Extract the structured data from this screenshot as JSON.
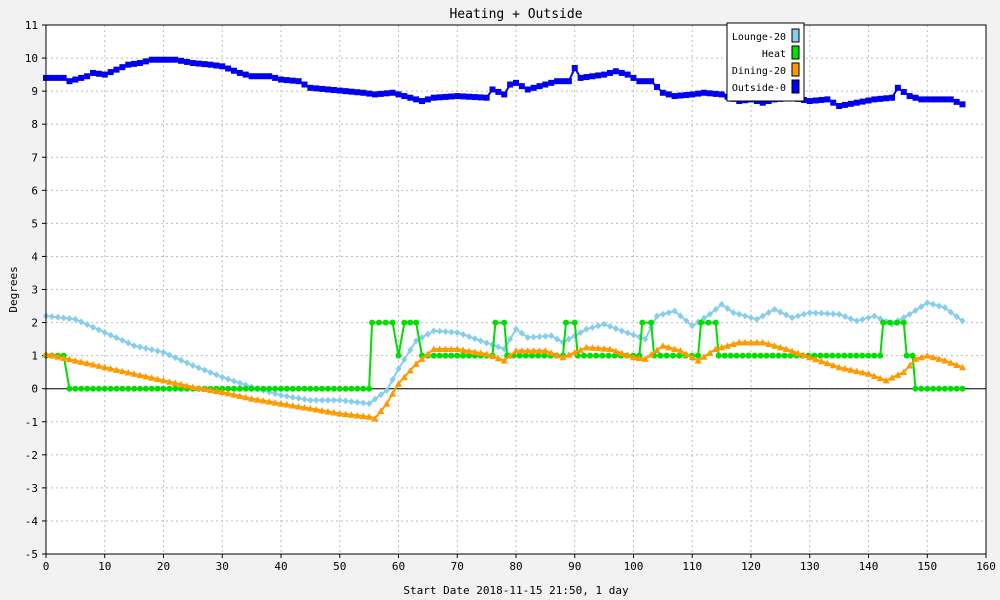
{
  "chart_data": {
    "type": "line",
    "title": "Heating + Outside",
    "xlabel": "Start Date 2018-11-15 21:50, 1 day",
    "ylabel": "Degrees",
    "xlim": [
      0,
      160
    ],
    "ylim": [
      -5,
      11
    ],
    "x_ticks": [
      0,
      10,
      20,
      30,
      40,
      50,
      60,
      70,
      80,
      90,
      100,
      110,
      120,
      130,
      140,
      150,
      160
    ],
    "y_ticks": [
      -5,
      -4,
      -3,
      -2,
      -1,
      0,
      1,
      2,
      3,
      4,
      5,
      6,
      7,
      8,
      9,
      10,
      11
    ],
    "grid": true,
    "legend_position": "top-right",
    "series": [
      {
        "name": "Lounge-20",
        "color": "#87ceeb",
        "marker": "diamond",
        "points": [
          [
            0,
            2.2
          ],
          [
            5,
            2.1
          ],
          [
            10,
            1.7
          ],
          [
            15,
            1.3
          ],
          [
            20,
            1.1
          ],
          [
            25,
            0.7
          ],
          [
            30,
            0.35
          ],
          [
            35,
            0.05
          ],
          [
            40,
            -0.2
          ],
          [
            45,
            -0.35
          ],
          [
            50,
            -0.35
          ],
          [
            55,
            -0.45
          ],
          [
            58,
            -0.05
          ],
          [
            60,
            0.6
          ],
          [
            63,
            1.45
          ],
          [
            66,
            1.75
          ],
          [
            70,
            1.7
          ],
          [
            74,
            1.45
          ],
          [
            78,
            1.2
          ],
          [
            80,
            1.8
          ],
          [
            82,
            1.55
          ],
          [
            86,
            1.6
          ],
          [
            88,
            1.4
          ],
          [
            92,
            1.8
          ],
          [
            95,
            1.95
          ],
          [
            98,
            1.75
          ],
          [
            102,
            1.5
          ],
          [
            104,
            2.2
          ],
          [
            107,
            2.35
          ],
          [
            110,
            1.9
          ],
          [
            113,
            2.25
          ],
          [
            115,
            2.55
          ],
          [
            117,
            2.3
          ],
          [
            121,
            2.1
          ],
          [
            124,
            2.4
          ],
          [
            127,
            2.15
          ],
          [
            130,
            2.3
          ],
          [
            135,
            2.25
          ],
          [
            138,
            2.05
          ],
          [
            141,
            2.2
          ],
          [
            144,
            1.95
          ],
          [
            147,
            2.25
          ],
          [
            150,
            2.6
          ],
          [
            153,
            2.45
          ],
          [
            156,
            2.05
          ]
        ]
      },
      {
        "name": "Heat",
        "color": "#00dd00",
        "marker": "circle",
        "points": [
          [
            0,
            1
          ],
          [
            3,
            1
          ],
          [
            4,
            0
          ],
          [
            55,
            0
          ],
          [
            55.5,
            2
          ],
          [
            59,
            2
          ],
          [
            60,
            1
          ],
          [
            61,
            2
          ],
          [
            63,
            2
          ],
          [
            64,
            1
          ],
          [
            76,
            1
          ],
          [
            76.5,
            2
          ],
          [
            78,
            2
          ],
          [
            78.5,
            1
          ],
          [
            88,
            1
          ],
          [
            88.5,
            2
          ],
          [
            90,
            2
          ],
          [
            90.5,
            1
          ],
          [
            101,
            1
          ],
          [
            101.5,
            2
          ],
          [
            103,
            2
          ],
          [
            103.5,
            1
          ],
          [
            111,
            1
          ],
          [
            111.5,
            2
          ],
          [
            114,
            2
          ],
          [
            114.5,
            1
          ],
          [
            142,
            1
          ],
          [
            142.5,
            2
          ],
          [
            146,
            2
          ],
          [
            146.5,
            1
          ],
          [
            147.5,
            1
          ],
          [
            148,
            0
          ],
          [
            156,
            0
          ]
        ]
      },
      {
        "name": "Dining-20",
        "color": "#ff9900",
        "marker": "triangle",
        "points": [
          [
            0,
            1.05
          ],
          [
            5,
            0.85
          ],
          [
            10,
            0.65
          ],
          [
            15,
            0.45
          ],
          [
            20,
            0.25
          ],
          [
            25,
            0.05
          ],
          [
            30,
            -0.1
          ],
          [
            35,
            -0.3
          ],
          [
            40,
            -0.45
          ],
          [
            45,
            -0.6
          ],
          [
            50,
            -0.75
          ],
          [
            55,
            -0.85
          ],
          [
            56,
            -0.9
          ],
          [
            58,
            -0.45
          ],
          [
            60,
            0.15
          ],
          [
            63,
            0.75
          ],
          [
            66,
            1.2
          ],
          [
            70,
            1.2
          ],
          [
            75,
            1.05
          ],
          [
            78,
            0.85
          ],
          [
            80,
            1.15
          ],
          [
            85,
            1.15
          ],
          [
            88,
            0.95
          ],
          [
            92,
            1.25
          ],
          [
            96,
            1.2
          ],
          [
            100,
            0.95
          ],
          [
            102,
            0.9
          ],
          [
            105,
            1.3
          ],
          [
            108,
            1.15
          ],
          [
            111,
            0.85
          ],
          [
            114,
            1.2
          ],
          [
            118,
            1.4
          ],
          [
            122,
            1.4
          ],
          [
            126,
            1.2
          ],
          [
            130,
            0.95
          ],
          [
            135,
            0.65
          ],
          [
            140,
            0.45
          ],
          [
            143,
            0.25
          ],
          [
            146,
            0.5
          ],
          [
            148,
            0.9
          ],
          [
            150,
            1.0
          ],
          [
            153,
            0.85
          ],
          [
            156,
            0.65
          ]
        ]
      },
      {
        "name": "Outside-0",
        "color": "#0000ee",
        "marker": "square",
        "points": [
          [
            0,
            9.4
          ],
          [
            3,
            9.4
          ],
          [
            4,
            9.3
          ],
          [
            7,
            9.45
          ],
          [
            8,
            9.55
          ],
          [
            10,
            9.5
          ],
          [
            12,
            9.65
          ],
          [
            14,
            9.8
          ],
          [
            16,
            9.85
          ],
          [
            18,
            9.95
          ],
          [
            22,
            9.95
          ],
          [
            25,
            9.85
          ],
          [
            28,
            9.8
          ],
          [
            30,
            9.75
          ],
          [
            33,
            9.55
          ],
          [
            35,
            9.45
          ],
          [
            38,
            9.45
          ],
          [
            40,
            9.35
          ],
          [
            43,
            9.3
          ],
          [
            45,
            9.1
          ],
          [
            48,
            9.05
          ],
          [
            51,
            9.0
          ],
          [
            54,
            8.95
          ],
          [
            56,
            8.9
          ],
          [
            59,
            8.95
          ],
          [
            62,
            8.8
          ],
          [
            64,
            8.7
          ],
          [
            66,
            8.8
          ],
          [
            70,
            8.85
          ],
          [
            75,
            8.8
          ],
          [
            76,
            9.05
          ],
          [
            78,
            8.9
          ],
          [
            79,
            9.2
          ],
          [
            80,
            9.25
          ],
          [
            82,
            9.05
          ],
          [
            84,
            9.15
          ],
          [
            87,
            9.3
          ],
          [
            89,
            9.3
          ],
          [
            90,
            9.7
          ],
          [
            91,
            9.4
          ],
          [
            93,
            9.45
          ],
          [
            95,
            9.5
          ],
          [
            97,
            9.6
          ],
          [
            99,
            9.5
          ],
          [
            101,
            9.3
          ],
          [
            103,
            9.3
          ],
          [
            105,
            8.95
          ],
          [
            107,
            8.85
          ],
          [
            110,
            8.9
          ],
          [
            112,
            8.95
          ],
          [
            115,
            8.9
          ],
          [
            118,
            8.7
          ],
          [
            120,
            8.75
          ],
          [
            122,
            8.65
          ],
          [
            124,
            8.75
          ],
          [
            127,
            8.8
          ],
          [
            130,
            8.7
          ],
          [
            133,
            8.75
          ],
          [
            135,
            8.55
          ],
          [
            138,
            8.65
          ],
          [
            141,
            8.75
          ],
          [
            144,
            8.8
          ],
          [
            145,
            9.1
          ],
          [
            147,
            8.85
          ],
          [
            149,
            8.75
          ],
          [
            154,
            8.75
          ],
          [
            156,
            8.6
          ]
        ]
      }
    ]
  }
}
